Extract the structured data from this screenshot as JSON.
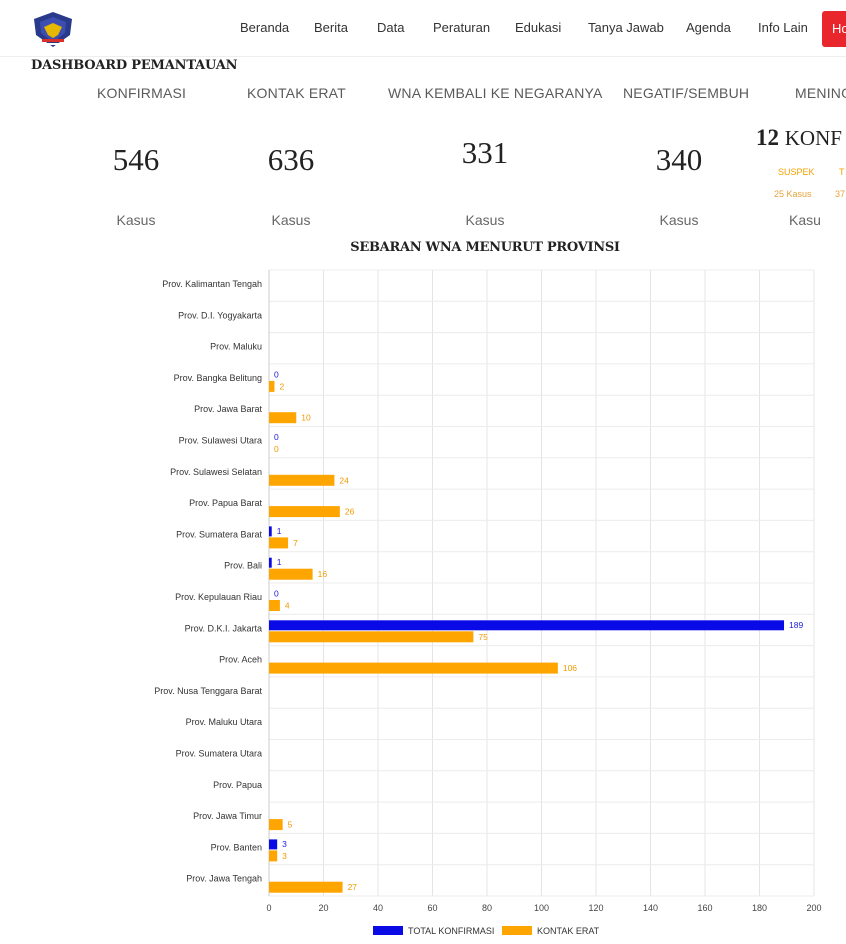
{
  "nav": {
    "items": [
      "Beranda",
      "Berita",
      "Data",
      "Peraturan",
      "Edukasi",
      "Tanya Jawab",
      "Agenda",
      "Info Lain"
    ],
    "cta_label": "Ho"
  },
  "dashboard": {
    "title": "DASHBOARD PEMANTAUAN",
    "stats": [
      {
        "label": "KONFIRMASI",
        "value": "546",
        "unit": "Kasus"
      },
      {
        "label": "KONTAK ERAT",
        "value": "636",
        "unit": "Kasus"
      },
      {
        "label": "WNA KEMBALI KE NEGARANYA",
        "value": "331",
        "unit": "Kasus"
      },
      {
        "label": "NEGATIF/SEMBUH",
        "value": "340",
        "unit": "Kasus"
      },
      {
        "label": "MENING",
        "value": "",
        "unit": "Kasu"
      }
    ],
    "sub_stat": {
      "number": "12",
      "word": "KONF",
      "suspek_label": "SUSPEK",
      "suspek_value": "25 Kasus",
      "second_label": "T",
      "second_value": "37"
    }
  },
  "colors": {
    "accent_red": "#e8262b",
    "series_blue": "#0a0ae6",
    "series_orange": "#ffa500"
  },
  "chart_data": {
    "type": "bar",
    "orientation": "horizontal",
    "title": "SEBARAN WNA MENURUT PROVINSI",
    "categories": [
      "Prov. Kalimantan Tengah",
      "Prov. D.I. Yogyakarta",
      "Prov. Maluku",
      "Prov. Bangka Belitung",
      "Prov. Jawa Barat",
      "Prov. Sulawesi Utara",
      "Prov. Sulawesi Selatan",
      "Prov. Papua Barat",
      "Prov. Sumatera Barat",
      "Prov. Bali",
      "Prov. Kepulauan Riau",
      "Prov. D.K.I. Jakarta",
      "Prov. Aceh",
      "Prov. Nusa Tenggara Barat",
      "Prov. Maluku Utara",
      "Prov. Sumatera Utara",
      "Prov. Papua",
      "Prov. Jawa Timur",
      "Prov. Banten",
      "Prov. Jawa Tengah"
    ],
    "series": [
      {
        "name": "TOTAL KONFIRMASI",
        "color": "#0a0ae6",
        "values": [
          null,
          null,
          null,
          0,
          null,
          0,
          null,
          null,
          1,
          1,
          0,
          189,
          null,
          null,
          null,
          null,
          null,
          null,
          3,
          null
        ]
      },
      {
        "name": "KONTAK ERAT",
        "color": "#ffa500",
        "values": [
          null,
          null,
          null,
          2,
          10,
          0,
          24,
          26,
          7,
          16,
          4,
          75,
          106,
          null,
          null,
          null,
          null,
          5,
          3,
          27
        ]
      }
    ],
    "xlim": [
      0,
      200
    ],
    "xticks": [
      0,
      20,
      40,
      60,
      80,
      100,
      120,
      140,
      160,
      180,
      200
    ],
    "grid": true,
    "legend_position": "bottom"
  }
}
